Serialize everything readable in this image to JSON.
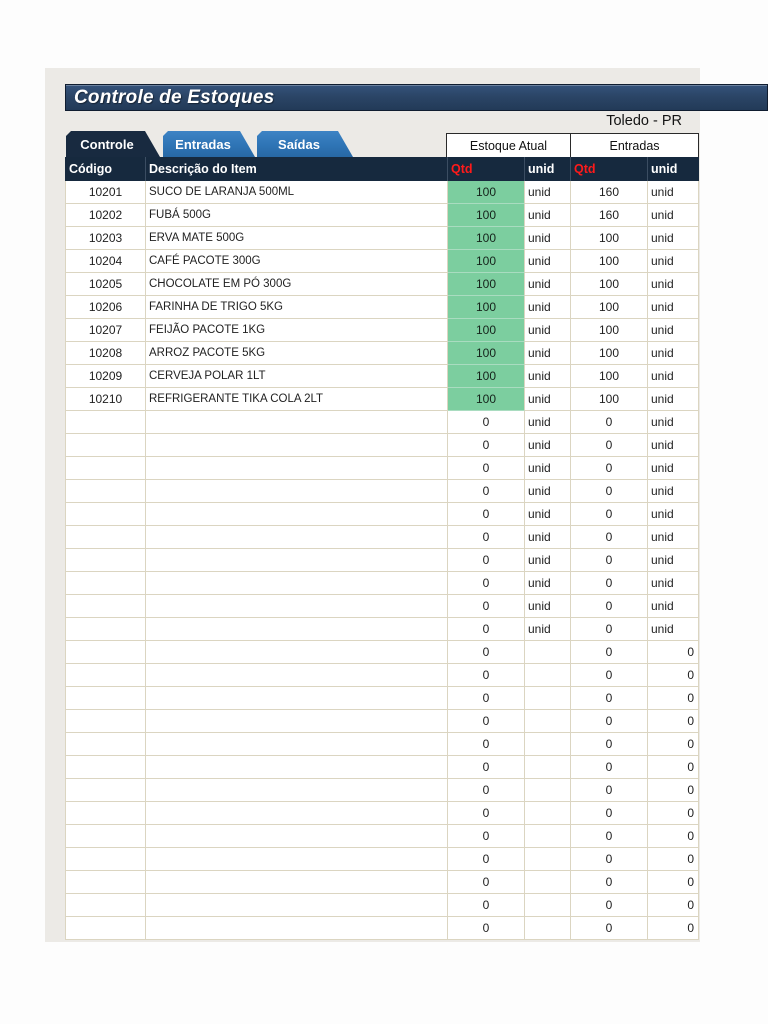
{
  "app": {
    "title": "Controle de Estoques",
    "location": "Toledo - PR"
  },
  "tabs": [
    {
      "label": "Controle",
      "active": true
    },
    {
      "label": "Entradas",
      "active": false
    },
    {
      "label": "Saídas",
      "active": false
    }
  ],
  "group_headers": [
    "Estoque Atual",
    "Entradas"
  ],
  "table": {
    "columns": [
      "Código",
      "Descrição do Item",
      "Qtd",
      "unid",
      "Qtd",
      "unid"
    ],
    "items": [
      {
        "code": "10201",
        "desc": "SUCO DE LARANJA 500ML",
        "stock_qty": "100",
        "stock_unit": "unid",
        "entry_qty": "160",
        "entry_unit": "unid"
      },
      {
        "code": "10202",
        "desc": "FUBÁ 500G",
        "stock_qty": "100",
        "stock_unit": "unid",
        "entry_qty": "160",
        "entry_unit": "unid"
      },
      {
        "code": "10203",
        "desc": "ERVA MATE 500G",
        "stock_qty": "100",
        "stock_unit": "unid",
        "entry_qty": "100",
        "entry_unit": "unid"
      },
      {
        "code": "10204",
        "desc": "CAFÉ PACOTE 300G",
        "stock_qty": "100",
        "stock_unit": "unid",
        "entry_qty": "100",
        "entry_unit": "unid"
      },
      {
        "code": "10205",
        "desc": "CHOCOLATE EM PÓ 300G",
        "stock_qty": "100",
        "stock_unit": "unid",
        "entry_qty": "100",
        "entry_unit": "unid"
      },
      {
        "code": "10206",
        "desc": "FARINHA DE TRIGO 5KG",
        "stock_qty": "100",
        "stock_unit": "unid",
        "entry_qty": "100",
        "entry_unit": "unid"
      },
      {
        "code": "10207",
        "desc": "FEIJÃO PACOTE 1KG",
        "stock_qty": "100",
        "stock_unit": "unid",
        "entry_qty": "100",
        "entry_unit": "unid"
      },
      {
        "code": "10208",
        "desc": "ARROZ PACOTE 5KG",
        "stock_qty": "100",
        "stock_unit": "unid",
        "entry_qty": "100",
        "entry_unit": "unid"
      },
      {
        "code": "10209",
        "desc": "CERVEJA POLAR 1LT",
        "stock_qty": "100",
        "stock_unit": "unid",
        "entry_qty": "100",
        "entry_unit": "unid"
      },
      {
        "code": "10210",
        "desc": "REFRIGERANTE TIKA COLA 2LT",
        "stock_qty": "100",
        "stock_unit": "unid",
        "entry_qty": "100",
        "entry_unit": "unid"
      }
    ],
    "empty_unit_row": {
      "code": "",
      "desc": "",
      "stock_qty": "0",
      "stock_unit": "unid",
      "entry_qty": "0",
      "entry_unit": "unid"
    },
    "empty_unit_row_count": 10,
    "empty_zero_row": {
      "code": "",
      "desc": "",
      "stock_qty": "0",
      "stock_unit": "",
      "entry_qty": "0",
      "entry_unit": "0"
    },
    "empty_zero_row_count": 13
  },
  "colors": {
    "navy": "#16293E",
    "title_bar": "#2B4566",
    "tab_blue": "#2E74B5",
    "qty_green": "#7CCE9F",
    "header_qty_red": "#FF1A1A",
    "gridline": "#DBD5C1",
    "sheet_gray": "#ECEAE6"
  }
}
